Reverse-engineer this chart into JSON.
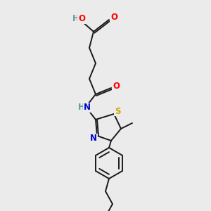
{
  "bg_color": "#ebebeb",
  "bond_color": "#1a1a1a",
  "atom_colors": {
    "O": "#ff0000",
    "N": "#0000cd",
    "S": "#ccaa00",
    "H": "#5a9a9a",
    "C": "#1a1a1a"
  }
}
